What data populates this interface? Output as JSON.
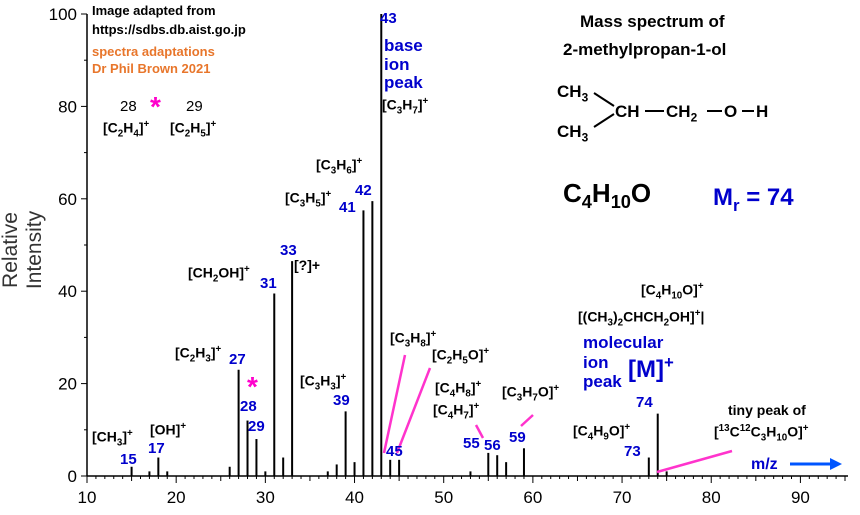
{
  "chart_data": {
    "type": "bar",
    "title": "Mass spectrum of 2-methylpropan-1-ol",
    "ylabel": "Relative Intensity",
    "xlabel": "m/z",
    "xlim": [
      10,
      95
    ],
    "ylim": [
      0,
      100
    ],
    "x_ticks": [
      10,
      20,
      30,
      40,
      50,
      60,
      70,
      80,
      90
    ],
    "y_ticks": [
      0,
      20,
      40,
      60,
      80,
      100
    ],
    "grid": false,
    "peaks": [
      {
        "mz": 15,
        "intensity": 2
      },
      {
        "mz": 17,
        "intensity": 1
      },
      {
        "mz": 18,
        "intensity": 4
      },
      {
        "mz": 19,
        "intensity": 1
      },
      {
        "mz": 26,
        "intensity": 2
      },
      {
        "mz": 27,
        "intensity": 23
      },
      {
        "mz": 28,
        "intensity": 12
      },
      {
        "mz": 29,
        "intensity": 8
      },
      {
        "mz": 30,
        "intensity": 1
      },
      {
        "mz": 31,
        "intensity": 39.5
      },
      {
        "mz": 32,
        "intensity": 4
      },
      {
        "mz": 33,
        "intensity": 46.5
      },
      {
        "mz": 37,
        "intensity": 1
      },
      {
        "mz": 38,
        "intensity": 2.5
      },
      {
        "mz": 39,
        "intensity": 14
      },
      {
        "mz": 40,
        "intensity": 3
      },
      {
        "mz": 41,
        "intensity": 57.5
      },
      {
        "mz": 42,
        "intensity": 59.5
      },
      {
        "mz": 43,
        "intensity": 100
      },
      {
        "mz": 44,
        "intensity": 3.5
      },
      {
        "mz": 45,
        "intensity": 3.5
      },
      {
        "mz": 53,
        "intensity": 1
      },
      {
        "mz": 55,
        "intensity": 5
      },
      {
        "mz": 56,
        "intensity": 4.5
      },
      {
        "mz": 57,
        "intensity": 3
      },
      {
        "mz": 59,
        "intensity": 6
      },
      {
        "mz": 73,
        "intensity": 4
      },
      {
        "mz": 74,
        "intensity": 13.5
      },
      {
        "mz": 75,
        "intensity": 1
      }
    ]
  },
  "header": {
    "source_line1": "Image adapted from",
    "source_line2": "https://sdbs.db.aist.go.jp",
    "credit_line1": "spectra adaptations",
    "credit_line2": "Dr Phil Brown 2021"
  },
  "compound": {
    "title_line1": "Mass spectrum of",
    "title_line2": "2-methylpropan-1-ol",
    "formula": "C4H10O",
    "mr_label": "Mr =",
    "mr_value": "74",
    "struct_ch3_top": "CH3",
    "struct_ch3_bottom": "CH3",
    "struct_ch": "CH",
    "struct_ch2": "CH2",
    "struct_o": "O",
    "struct_h": "H"
  },
  "annotations": {
    "star": "*",
    "ion_28": "[C2H4]+",
    "ion_29": "[C2H5]+",
    "num_28_top": "28",
    "num_29_top": "29",
    "ch3": "[CH3]+",
    "oh": "[OH]+",
    "c2h3": "[C2H3]+",
    "ch2oh": "[CH2OH]+",
    "unknown": "[?]+",
    "c3h3": "[C3H3]+",
    "c3h5": "[C3H5]+",
    "c3h6": "[C3H6]+",
    "base_line1": "base",
    "base_line2": "ion",
    "base_line3": "peak",
    "c3h7": "[C3H7]+",
    "c3h8": "[C3H8]+",
    "c2h5o": "[C2H5O]+",
    "c4h8": "[C4H8]+",
    "c4h7": "[C4H7]+",
    "c3h7o": "[C3H7O]+",
    "c4h9o": "[C4H9O]+",
    "c4h10o": "[C4H10O]+",
    "molecular_form": "[(CH3)2CHCH2OH]+",
    "molecular_line1": "molecular",
    "molecular_line2": "ion",
    "molecular_line3": "peak",
    "m_plus": "[M]+",
    "tiny_line1": "tiny peak of",
    "tiny_formula": "[13C12C3H10O]+",
    "mz_arrow_label": "m/z"
  },
  "peak_numbers": [
    "15",
    "17",
    "27",
    "28",
    "29",
    "31",
    "33",
    "39",
    "41",
    "42",
    "43",
    "45",
    "55",
    "56",
    "59",
    "73",
    "74"
  ]
}
